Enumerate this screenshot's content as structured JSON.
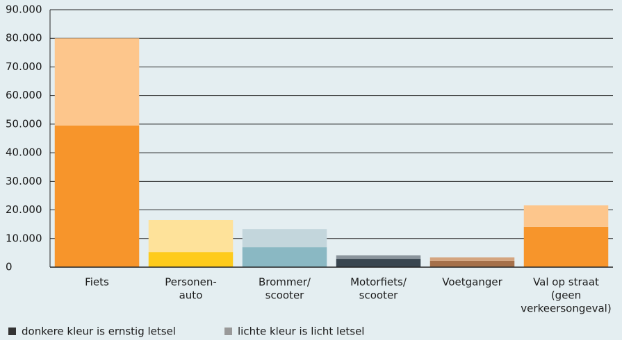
{
  "chart_data": {
    "type": "stacked-bar",
    "categories": [
      [
        "Fiets"
      ],
      [
        "Personen-",
        "auto"
      ],
      [
        "Brommer/",
        "scooter"
      ],
      [
        "Motorfiets/",
        "scooter"
      ],
      [
        "Voetganger"
      ],
      [
        "Val op straat",
        "(geen",
        "verkeersongeval)"
      ]
    ],
    "series": [
      {
        "name": "donkere kleur is ernstig letsel",
        "color": "#333333",
        "colors": [
          "#f7952b",
          "#fecb1c",
          "#8ab8c3",
          "#38454f",
          "#a5704a",
          "#f7952b"
        ],
        "values": [
          49500,
          5300,
          7000,
          2900,
          2200,
          14100
        ]
      },
      {
        "name": "lichte kleur is licht letsel",
        "color": "#999999",
        "colors": [
          "#fdc68c",
          "#fee29a",
          "#c3d6dc",
          "#8a949c",
          "#d4a47f",
          "#fdc68c"
        ],
        "values": [
          30500,
          11200,
          6300,
          1200,
          1200,
          7500
        ]
      }
    ],
    "ylim": [
      0,
      90000
    ],
    "yticks": [
      0,
      {
        "value": 10000,
        "label": "10.000"
      },
      {
        "value": 20000,
        "label": "20.000"
      },
      {
        "value": 30000,
        "label": "30.000"
      },
      {
        "value": 40000,
        "label": "40.000"
      },
      {
        "value": 50000,
        "label": "50.000"
      },
      {
        "value": 60000,
        "label": "60.000"
      },
      {
        "value": 70000,
        "label": "70.000"
      },
      {
        "value": 80000,
        "label": "80.000"
      },
      {
        "value": 90000,
        "label": "90.000"
      }
    ],
    "grid": true
  }
}
